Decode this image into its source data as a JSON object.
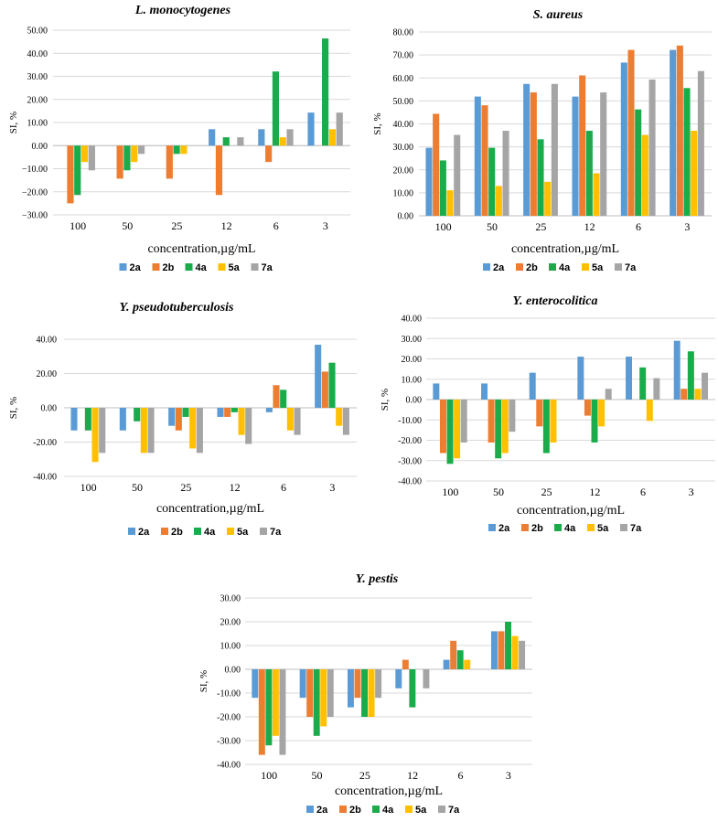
{
  "series_colors": [
    "#5b9bd5",
    "#ed7d31",
    "#1aab4b",
    "#ffc000",
    "#a5a5a5"
  ],
  "chart_data": [
    {
      "type": "bar",
      "title": "L. monocytogenes",
      "xlabel": "concentration,µg/mL",
      "ylabel": "SI, %",
      "ylim": [
        -30,
        50
      ],
      "ystep": 10,
      "tick_decimals": 2,
      "minus_style": "−",
      "categories": [
        "100",
        "50",
        "25",
        "12",
        "6",
        "3"
      ],
      "series": [
        {
          "name": "2a",
          "values": [
            0,
            0,
            0,
            7.1,
            7.1,
            14.3
          ]
        },
        {
          "name": "2b",
          "values": [
            -25,
            -14.3,
            -14.3,
            -21.4,
            -7.1,
            0
          ]
        },
        {
          "name": "4a",
          "values": [
            -21.4,
            -10.7,
            -3.6,
            3.6,
            32.1,
            46.4
          ]
        },
        {
          "name": "5a",
          "values": [
            -7.1,
            -7.1,
            -3.6,
            0,
            3.6,
            7.1
          ]
        },
        {
          "name": "7a",
          "values": [
            -10.7,
            -3.6,
            0,
            3.6,
            7.1,
            14.3
          ]
        }
      ],
      "legend_labels": [
        "2a",
        "2b",
        "4a",
        "5a",
        "7a"
      ]
    },
    {
      "type": "bar",
      "title": "S. aureus",
      "xlabel": "concentration,µg/mL",
      "ylabel": "SI, %",
      "ylim": [
        0,
        80
      ],
      "ystep": 10,
      "tick_decimals": 2,
      "minus_style": "-",
      "categories": [
        "100",
        "50",
        "25",
        "12",
        "6",
        "3"
      ],
      "series": [
        {
          "name": "2a",
          "values": [
            29.6,
            51.9,
            57.4,
            51.9,
            66.7,
            72.2
          ]
        },
        {
          "name": "2b",
          "values": [
            44.4,
            48.1,
            53.7,
            61.1,
            72.2,
            74.1
          ]
        },
        {
          "name": "4a",
          "values": [
            24.1,
            29.6,
            33.3,
            37.0,
            46.3,
            55.6
          ]
        },
        {
          "name": "5a",
          "values": [
            11.1,
            13.0,
            14.8,
            18.5,
            35.2,
            37.0
          ]
        },
        {
          "name": "7a",
          "values": [
            35.2,
            37.0,
            57.4,
            53.7,
            59.3,
            63.0
          ]
        }
      ],
      "legend_labels": [
        "2a",
        "2b",
        "4a",
        "5a",
        "7a"
      ]
    },
    {
      "type": "bar",
      "title": "Y. pseudotuberculosis",
      "xlabel": "concentration,µg/mL",
      "ylabel": "SI, %",
      "ylim": [
        -40,
        40
      ],
      "ystep": 20,
      "tick_decimals": 2,
      "minus_style": "-",
      "categories": [
        "100",
        "50",
        "25",
        "12",
        "6",
        "3"
      ],
      "series": [
        {
          "name": "2a",
          "values": [
            -13.2,
            -13.2,
            -10.5,
            -5.3,
            -2.6,
            36.8
          ]
        },
        {
          "name": "2b",
          "values": [
            0,
            0,
            -13.2,
            -5.3,
            13.2,
            21.1
          ]
        },
        {
          "name": "4a",
          "values": [
            -13.2,
            -7.9,
            -5.3,
            -2.6,
            10.5,
            26.3
          ]
        },
        {
          "name": "5a",
          "values": [
            -31.6,
            -26.3,
            -23.7,
            -15.8,
            -13.2,
            -10.5
          ]
        },
        {
          "name": "7a",
          "values": [
            -26.3,
            -26.3,
            -26.3,
            -21.1,
            -15.8,
            -15.8
          ]
        }
      ],
      "legend_labels": [
        "2a",
        "2b",
        "4a",
        "5a",
        "7a"
      ]
    },
    {
      "type": "bar",
      "title": "Y. enterocolitica",
      "xlabel": "concentration,µg/mL",
      "ylabel": "SI, %",
      "ylim": [
        -40,
        40
      ],
      "ystep": 10,
      "tick_decimals": 2,
      "minus_style": "-",
      "categories": [
        "100",
        "50",
        "25",
        "12",
        "6",
        "3"
      ],
      "series": [
        {
          "name": "2a",
          "values": [
            7.9,
            7.9,
            13.2,
            21.1,
            21.1,
            28.9
          ]
        },
        {
          "name": "2b",
          "values": [
            -26.3,
            -21.1,
            -13.2,
            -7.9,
            0,
            5.3
          ]
        },
        {
          "name": "4a",
          "values": [
            -31.6,
            -28.9,
            -26.3,
            -21.1,
            15.8,
            23.7
          ]
        },
        {
          "name": "5a",
          "values": [
            -28.9,
            -26.3,
            -21.1,
            -13.2,
            -10.5,
            5.3
          ]
        },
        {
          "name": "7a",
          "values": [
            -21.1,
            -15.8,
            0,
            5.3,
            10.5,
            13.2
          ]
        }
      ],
      "legend_labels": [
        "2a",
        "2b",
        "4a",
        "5a",
        "7a"
      ]
    },
    {
      "type": "bar",
      "title": "Y. pestis",
      "xlabel": "concentration,µg/mL",
      "ylabel": "SI, %",
      "ylim": [
        -40,
        30
      ],
      "ystep": 10,
      "tick_decimals": 2,
      "minus_style": "-",
      "categories": [
        "100",
        "50",
        "25",
        "12",
        "6",
        "3"
      ],
      "series": [
        {
          "name": "2a",
          "values": [
            -12,
            -12,
            -16,
            -8,
            4,
            16
          ]
        },
        {
          "name": "2b",
          "values": [
            -36,
            -20,
            -12,
            4,
            12,
            16
          ]
        },
        {
          "name": "4a",
          "values": [
            -32,
            -28,
            -20,
            -16,
            8,
            20
          ]
        },
        {
          "name": "5a",
          "values": [
            -28,
            -24,
            -20,
            0,
            4,
            14
          ]
        },
        {
          "name": "7a",
          "values": [
            -36,
            -20,
            -12,
            -8,
            0,
            12
          ]
        }
      ],
      "legend_labels": [
        "2a",
        "2b",
        "4a",
        "5a",
        "7a"
      ]
    }
  ]
}
